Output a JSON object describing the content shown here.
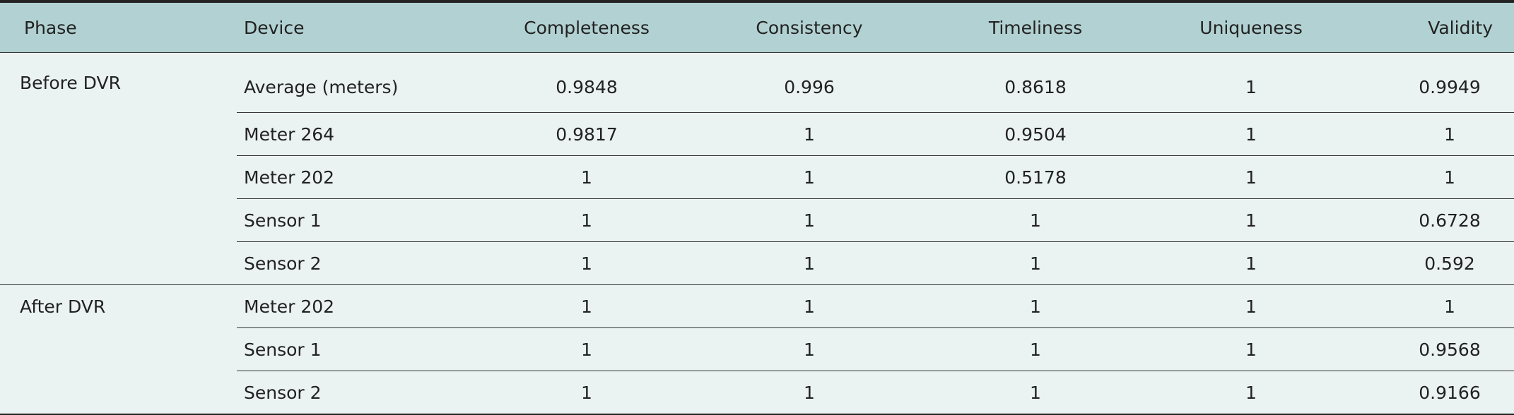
{
  "table": {
    "columns": [
      "Phase",
      "Device",
      "Completeness",
      "Consistency",
      "Timeliness",
      "Uniqueness",
      "Validity"
    ],
    "groups": [
      {
        "phase": "Before DVR",
        "rows": [
          {
            "device": "Average (meters)",
            "values": [
              0.9848,
              0.996,
              0.8618,
              1,
              0.9949
            ]
          },
          {
            "device": "Meter 264",
            "values": [
              0.9817,
              1,
              0.9504,
              1,
              1
            ]
          },
          {
            "device": "Meter 202",
            "values": [
              1,
              1,
              0.5178,
              1,
              1
            ]
          },
          {
            "device": "Sensor 1",
            "values": [
              1,
              1,
              1,
              1,
              0.6728
            ]
          },
          {
            "device": "Sensor 2",
            "values": [
              1,
              1,
              1,
              1,
              0.592
            ]
          }
        ]
      },
      {
        "phase": "After DVR",
        "rows": [
          {
            "device": "Meter 202",
            "values": [
              1,
              1,
              1,
              1,
              1
            ]
          },
          {
            "device": "Sensor 1",
            "values": [
              1,
              1,
              1,
              1,
              0.9568
            ]
          },
          {
            "device": "Sensor 2",
            "values": [
              1,
              1,
              1,
              1,
              0.9166
            ]
          }
        ]
      }
    ]
  }
}
